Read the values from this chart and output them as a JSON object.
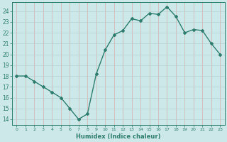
{
  "xlabel": "Humidex (Indice chaleur)",
  "x": [
    0,
    1,
    2,
    3,
    4,
    5,
    6,
    7,
    8,
    9,
    10,
    11,
    12,
    13,
    14,
    15,
    16,
    17,
    18,
    19,
    20,
    21,
    22,
    23
  ],
  "y": [
    18,
    18,
    17.5,
    17,
    16.5,
    16,
    15,
    14,
    14.5,
    18.2,
    20.4,
    21.8,
    22.2,
    23.3,
    23.1,
    23.8,
    23.7,
    24.4,
    23.5,
    22,
    22.3,
    22.2,
    21,
    20
  ],
  "line_color": "#2e7d6e",
  "bg_color": "#cce8e8",
  "grid_major_color": "#b8d4d4",
  "grid_minor_color": "#d4b8b8",
  "axis_color": "#2e7d6e",
  "tick_label_color": "#2e7d6e",
  "xlabel_color": "#2e7d6e",
  "ylim": [
    13.5,
    24.8
  ],
  "yticks": [
    14,
    15,
    16,
    17,
    18,
    19,
    20,
    21,
    22,
    23,
    24
  ],
  "xlim": [
    -0.5,
    23.5
  ],
  "marker": "D",
  "markersize": 2.0,
  "linewidth": 1.0
}
